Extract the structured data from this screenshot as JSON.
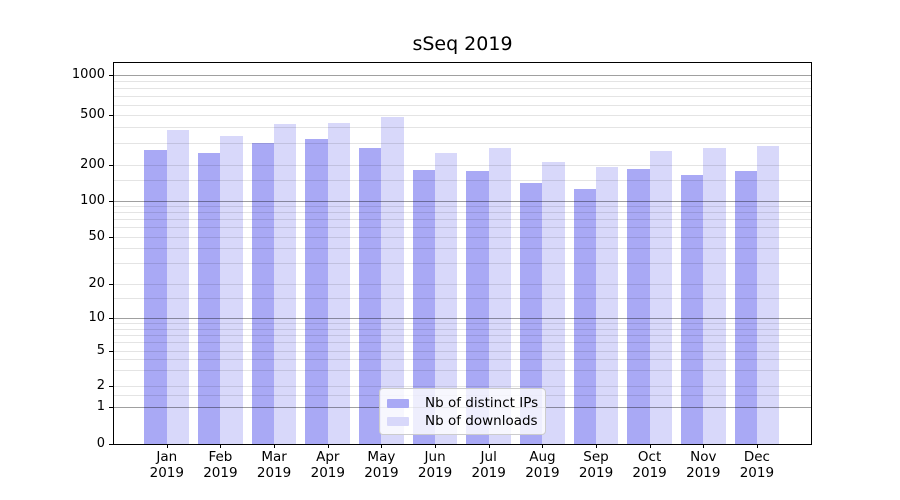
{
  "chart_data": {
    "type": "bar",
    "title": "sSeq 2019",
    "categories": [
      "Jan",
      "Feb",
      "Mar",
      "Apr",
      "May",
      "Jun",
      "Jul",
      "Aug",
      "Sep",
      "Oct",
      "Nov",
      "Dec"
    ],
    "x_tick_second_line": "2019",
    "series": [
      {
        "name": "Nb of distinct IPs",
        "color": "#a9a9f5",
        "values": [
          265,
          250,
          300,
          322,
          274,
          180,
          177,
          141,
          126,
          183,
          165,
          176
        ]
      },
      {
        "name": "Nb of downloads",
        "color": "#d8d8fa",
        "values": [
          380,
          340,
          423,
          430,
          487,
          251,
          272,
          211,
          192,
          258,
          274,
          281
        ]
      }
    ],
    "y_ticks": [
      0,
      1,
      2,
      5,
      10,
      20,
      50,
      100,
      200,
      500,
      1000
    ],
    "y_scale": "log1p",
    "ylim": [
      0,
      1288
    ],
    "grid": true,
    "grid_major_values": [
      1,
      10,
      100,
      1000
    ],
    "grid_minor_values": [
      1.5,
      2,
      3,
      4,
      5,
      6,
      7,
      8,
      9,
      15,
      20,
      30,
      40,
      50,
      60,
      70,
      80,
      90,
      150,
      200,
      300,
      400,
      500,
      600,
      700,
      800,
      900
    ],
    "legend_position": "lower center",
    "colors": {
      "major_grid": "#a0a0a0",
      "minor_grid": "#e4e4e4",
      "spine": "#000000"
    }
  }
}
